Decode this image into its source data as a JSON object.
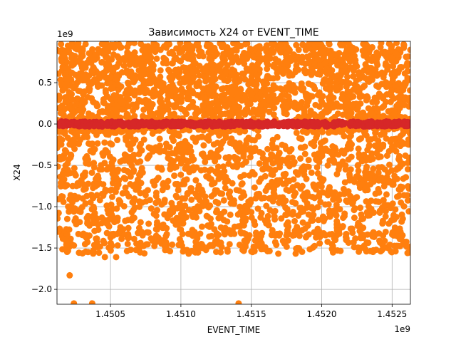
{
  "chart_data": {
    "type": "scatter",
    "title": "Зависимость X24 от EVENT_TIME",
    "xlabel": "EVENT_TIME",
    "ylabel": "X24",
    "x_offset_label": "1e9",
    "y_offset_label": "1e9",
    "xlim": [
      1.45012,
      1.45263
    ],
    "ylim": [
      -2.18,
      1.0
    ],
    "x_ticks": [
      {
        "value": 1.4505,
        "label": "1.4505"
      },
      {
        "value": 1.451,
        "label": "1.4510"
      },
      {
        "value": 1.4515,
        "label": "1.4515"
      },
      {
        "value": 1.452,
        "label": "1.4520"
      },
      {
        "value": 1.4525,
        "label": "1.4525"
      }
    ],
    "y_ticks": [
      {
        "value": 0.5,
        "label": "0.5"
      },
      {
        "value": 0.0,
        "label": "0.0"
      },
      {
        "value": -0.5,
        "label": "−0.5"
      },
      {
        "value": -1.0,
        "label": "−1.0"
      },
      {
        "value": -1.5,
        "label": "−1.5"
      },
      {
        "value": -2.0,
        "label": "−2.0"
      }
    ],
    "grid": true,
    "series": [
      {
        "color": "#ff7f0e",
        "marker": "circle",
        "x_range": [
          1.45012,
          1.45263
        ],
        "y_range": [
          -1.57,
          0.98
        ],
        "outliers": [
          {
            "x": 1.45021,
            "y": -1.83
          },
          {
            "x": 1.45024,
            "y": -2.17
          },
          {
            "x": 1.45037,
            "y": -2.17
          },
          {
            "x": 1.45141,
            "y": -2.17
          },
          {
            "x": 1.45046,
            "y": -1.61
          },
          {
            "x": 1.45054,
            "y": -1.61
          },
          {
            "x": 1.45173,
            "y": -0.61
          }
        ]
      },
      {
        "color": "#d62728",
        "marker": "circle",
        "x_range": [
          1.45012,
          1.45263
        ],
        "y_range": [
          -0.03,
          0.03
        ]
      }
    ]
  }
}
